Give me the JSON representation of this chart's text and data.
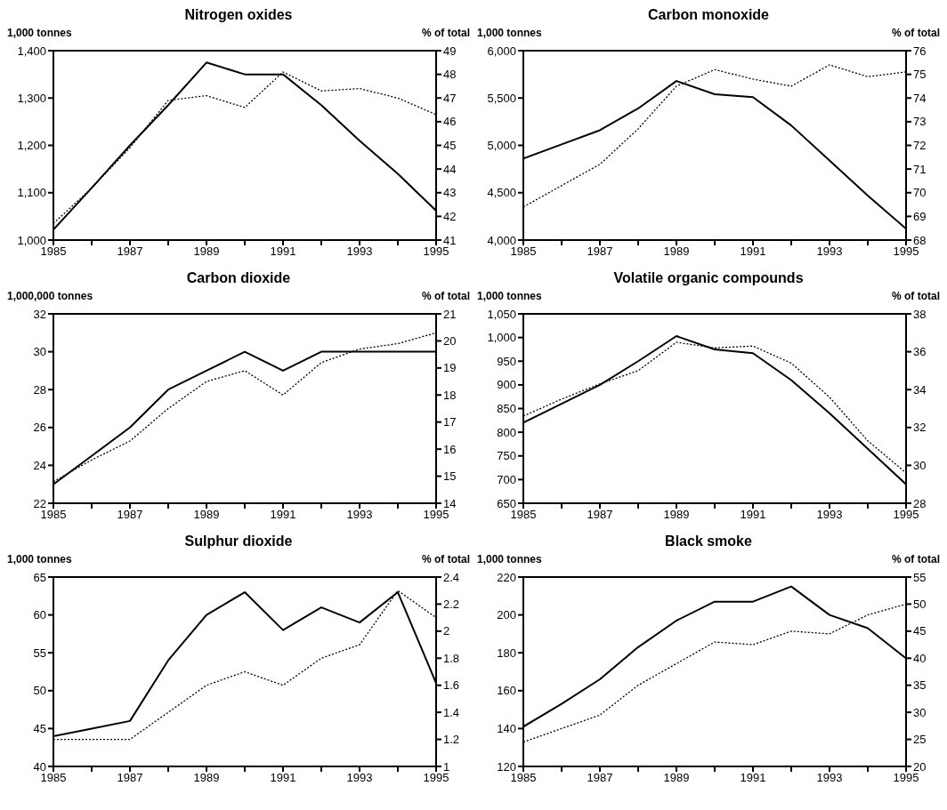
{
  "chart_data": [
    {
      "type": "line",
      "title": "Nitrogen oxides",
      "ylabel": "1,000 tonnes",
      "y2label": "% of total",
      "x": [
        1985,
        1986,
        1987,
        1988,
        1989,
        1990,
        1991,
        1992,
        1993,
        1994,
        1995
      ],
      "xlim": [
        1985,
        1995
      ],
      "xticks": [
        1985,
        {
          "value": 1986,
          "label": null
        },
        1987,
        {
          "value": 1988,
          "label": null
        },
        1989,
        {
          "value": 1990,
          "label": null
        },
        1991,
        {
          "value": 1992,
          "label": null
        },
        1993,
        {
          "value": 1994,
          "label": null
        },
        1995
      ],
      "ylim": [
        1000,
        1400
      ],
      "yticks": [
        {
          "value": 1000,
          "label": "1,000"
        },
        {
          "value": 1100,
          "label": "1,100"
        },
        {
          "value": 1200,
          "label": "1,200"
        },
        {
          "value": 1300,
          "label": "1,300"
        },
        {
          "value": 1400,
          "label": "1,400"
        }
      ],
      "y2lim": [
        41,
        49
      ],
      "y2ticks": [
        41,
        42,
        43,
        44,
        45,
        46,
        47,
        48,
        49
      ],
      "grid": false,
      "legend": false,
      "marker": "none",
      "series": [
        {
          "color": "#000000",
          "line_style": "solid",
          "values": [
            1022,
            1110,
            1200,
            1285,
            1375,
            1350,
            1350,
            1285,
            1210,
            1140,
            1062
          ]
        },
        {
          "color": "#000000",
          "line_style": "dotted",
          "axis": "y2",
          "values": [
            41.7,
            43.2,
            44.9,
            46.9,
            47.1,
            46.6,
            48.1,
            47.3,
            47.4,
            47.0,
            46.3
          ]
        }
      ]
    },
    {
      "type": "line",
      "title": "Carbon monoxide",
      "ylabel": "1,000 tonnes",
      "y2label": "% of total",
      "x": [
        1985,
        1986,
        1987,
        1988,
        1989,
        1990,
        1991,
        1992,
        1993,
        1994,
        1995
      ],
      "xlim": [
        1985,
        1995
      ],
      "xticks": [
        1985,
        {
          "value": 1986,
          "label": null
        },
        1987,
        {
          "value": 1988,
          "label": null
        },
        1989,
        {
          "value": 1990,
          "label": null
        },
        1991,
        {
          "value": 1992,
          "label": null
        },
        1993,
        {
          "value": 1994,
          "label": null
        },
        1995
      ],
      "ylim": [
        4000,
        6000
      ],
      "yticks": [
        {
          "value": 4000,
          "label": "4,000"
        },
        {
          "value": 4500,
          "label": "4,500"
        },
        {
          "value": 5000,
          "label": "5,000"
        },
        {
          "value": 5500,
          "label": "5,500"
        },
        {
          "value": 6000,
          "label": "6,000"
        }
      ],
      "y2lim": [
        68,
        76
      ],
      "y2ticks": [
        68,
        69,
        70,
        71,
        72,
        73,
        74,
        75,
        76
      ],
      "grid": false,
      "legend": false,
      "marker": "none",
      "series": [
        {
          "color": "#000000",
          "line_style": "solid",
          "values": [
            4860,
            5010,
            5160,
            5390,
            5680,
            5540,
            5510,
            5210,
            4840,
            4470,
            4120
          ]
        },
        {
          "color": "#000000",
          "line_style": "dotted",
          "axis": "y2",
          "values": [
            69.4,
            70.3,
            71.2,
            72.7,
            74.5,
            75.2,
            74.8,
            74.5,
            75.4,
            74.9,
            75.1
          ]
        }
      ]
    },
    {
      "type": "line",
      "title": "Carbon dioxide",
      "ylabel": "1,000,000 tonnes",
      "y2label": "% of total",
      "x": [
        1985,
        1986,
        1987,
        1988,
        1989,
        1990,
        1991,
        1992,
        1993,
        1994,
        1995
      ],
      "xlim": [
        1985,
        1995
      ],
      "xticks": [
        1985,
        {
          "value": 1986,
          "label": null
        },
        1987,
        {
          "value": 1988,
          "label": null
        },
        1989,
        {
          "value": 1990,
          "label": null
        },
        1991,
        {
          "value": 1992,
          "label": null
        },
        1993,
        {
          "value": 1994,
          "label": null
        },
        1995
      ],
      "ylim": [
        22,
        32
      ],
      "yticks": [
        22,
        24,
        26,
        28,
        30,
        32
      ],
      "y2lim": [
        14,
        21
      ],
      "y2ticks": [
        14,
        15,
        16,
        17,
        18,
        19,
        20,
        21
      ],
      "grid": false,
      "legend": false,
      "marker": "none",
      "series": [
        {
          "color": "#000000",
          "line_style": "solid",
          "values": [
            23,
            24.5,
            26,
            28,
            29,
            30,
            29,
            30,
            30,
            30,
            30
          ]
        },
        {
          "color": "#000000",
          "line_style": "dotted",
          "axis": "y2",
          "values": [
            14.8,
            15.6,
            16.3,
            17.5,
            18.5,
            18.9,
            18.0,
            19.2,
            19.7,
            19.9,
            20.3
          ]
        }
      ]
    },
    {
      "type": "line",
      "title": "Volatile organic compounds",
      "ylabel": "1,000 tonnes",
      "y2label": "% of total",
      "x": [
        1985,
        1986,
        1987,
        1988,
        1989,
        1990,
        1991,
        1992,
        1993,
        1994,
        1995
      ],
      "xlim": [
        1985,
        1995
      ],
      "xticks": [
        1985,
        {
          "value": 1986,
          "label": null
        },
        1987,
        {
          "value": 1988,
          "label": null
        },
        1989,
        {
          "value": 1990,
          "label": null
        },
        1991,
        {
          "value": 1992,
          "label": null
        },
        1993,
        {
          "value": 1994,
          "label": null
        },
        1995
      ],
      "ylim": [
        650,
        1050
      ],
      "yticks": [
        650,
        700,
        750,
        800,
        850,
        900,
        950,
        {
          "value": 1000,
          "label": "1,000"
        },
        {
          "value": 1050,
          "label": "1,050"
        }
      ],
      "y2lim": [
        28,
        38
      ],
      "y2ticks": [
        28,
        30,
        32,
        34,
        36,
        38
      ],
      "grid": false,
      "legend": false,
      "marker": "none",
      "series": [
        {
          "color": "#000000",
          "line_style": "solid",
          "values": [
            820,
            860,
            900,
            950,
            1003,
            975,
            967,
            910,
            840,
            765,
            690
          ]
        },
        {
          "color": "#000000",
          "line_style": "dotted",
          "axis": "y2",
          "values": [
            32.6,
            33.5,
            34.3,
            35.0,
            36.5,
            36.2,
            36.3,
            35.4,
            33.6,
            31.3,
            29.6
          ]
        }
      ]
    },
    {
      "type": "line",
      "title": "Sulphur dioxide",
      "ylabel": "1,000 tonnes",
      "y2label": "% of total",
      "x": [
        1985,
        1986,
        1987,
        1988,
        1989,
        1990,
        1991,
        1992,
        1993,
        1994,
        1995
      ],
      "xlim": [
        1985,
        1995
      ],
      "xticks": [
        1985,
        {
          "value": 1986,
          "label": null
        },
        1987,
        {
          "value": 1988,
          "label": null
        },
        1989,
        {
          "value": 1990,
          "label": null
        },
        1991,
        {
          "value": 1992,
          "label": null
        },
        1993,
        {
          "value": 1994,
          "label": null
        },
        1995
      ],
      "ylim": [
        40,
        65
      ],
      "yticks": [
        40,
        45,
        50,
        55,
        60,
        65
      ],
      "y2lim": [
        1,
        2.4
      ],
      "y2ticks": [
        1,
        1.2,
        1.4,
        1.6,
        1.8,
        2,
        2.2,
        2.4
      ],
      "grid": false,
      "legend": false,
      "marker": "none",
      "series": [
        {
          "color": "#000000",
          "line_style": "solid",
          "values": [
            44,
            45,
            46,
            54,
            60,
            63,
            58,
            61,
            59,
            63,
            51
          ]
        },
        {
          "color": "#000000",
          "line_style": "dotted",
          "axis": "y2",
          "values": [
            1.2,
            1.2,
            1.2,
            1.4,
            1.6,
            1.7,
            1.6,
            1.8,
            1.9,
            2.3,
            2.1
          ]
        }
      ]
    },
    {
      "type": "line",
      "title": "Black smoke",
      "ylabel": "1,000 tonnes",
      "y2label": "% of total",
      "x": [
        1985,
        1986,
        1987,
        1988,
        1989,
        1990,
        1991,
        1992,
        1993,
        1994,
        1995
      ],
      "xlim": [
        1985,
        1995
      ],
      "xticks": [
        1985,
        {
          "value": 1986,
          "label": null
        },
        1987,
        {
          "value": 1988,
          "label": null
        },
        1989,
        {
          "value": 1990,
          "label": null
        },
        1991,
        {
          "value": 1992,
          "label": null
        },
        1993,
        {
          "value": 1994,
          "label": null
        },
        1995
      ],
      "ylim": [
        120,
        220
      ],
      "yticks": [
        120,
        140,
        160,
        180,
        200,
        220
      ],
      "y2lim": [
        20,
        55
      ],
      "y2ticks": [
        20,
        25,
        30,
        35,
        40,
        45,
        50,
        55
      ],
      "grid": false,
      "legend": false,
      "marker": "none",
      "series": [
        {
          "color": "#000000",
          "line_style": "solid",
          "values": [
            141,
            153,
            166,
            183,
            197,
            207,
            207,
            215,
            200,
            193,
            177
          ]
        },
        {
          "color": "#000000",
          "line_style": "dotted",
          "axis": "y2",
          "values": [
            24.5,
            27,
            29.5,
            35,
            39,
            43,
            42.5,
            45,
            44.5,
            48,
            50
          ]
        }
      ]
    }
  ]
}
